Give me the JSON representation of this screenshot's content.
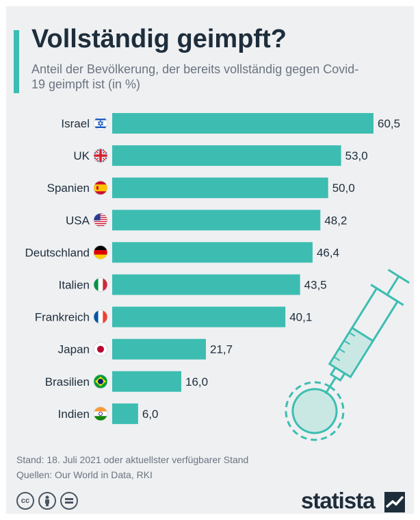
{
  "title": "Vollständig geimpft?",
  "subtitle": "Anteil der Bevölkerung, der bereits vollständig gegen Covid-19 geimpft ist (in %)",
  "colors": {
    "bar": "#3dbdb1",
    "accent": "#3dbdb1",
    "text": "#1e2d3b"
  },
  "chart_data": {
    "type": "bar",
    "orientation": "horizontal",
    "categories": [
      "Israel",
      "UK",
      "Spanien",
      "USA",
      "Deutschland",
      "Italien",
      "Frankreich",
      "Japan",
      "Brasilien",
      "Indien"
    ],
    "values": [
      60.5,
      53.0,
      50.0,
      48.2,
      46.4,
      43.5,
      40.1,
      21.7,
      16.0,
      6.0
    ],
    "value_labels": [
      "60,5",
      "53,0",
      "50,0",
      "48,2",
      "46,4",
      "43,5",
      "40,1",
      "21,7",
      "16,0",
      "6,0"
    ],
    "flags": [
      "israel-flag-icon",
      "uk-flag-icon",
      "spain-flag-icon",
      "usa-flag-icon",
      "germany-flag-icon",
      "italy-flag-icon",
      "france-flag-icon",
      "japan-flag-icon",
      "brazil-flag-icon",
      "india-flag-icon"
    ],
    "xlim": [
      0,
      60.5
    ],
    "grid": false
  },
  "footer": {
    "stand": "Stand: 18. Juli 2021 oder aktuellster verfügbarer Stand",
    "quellen": "Quellen: Our World in Data, RKI"
  },
  "license_icons": [
    "cc-icon",
    "by-icon",
    "nd-icon"
  ],
  "brand": "statista"
}
